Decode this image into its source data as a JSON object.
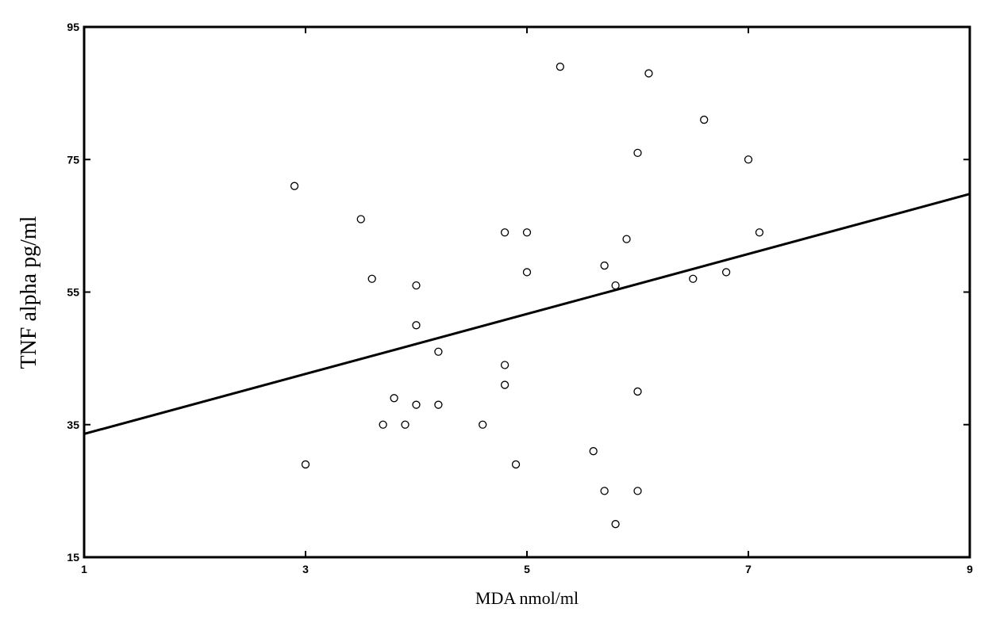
{
  "chart_data": {
    "type": "scatter",
    "title": "",
    "xlabel": "MDA nmol/ml",
    "ylabel": "TNF alpha pg/ml",
    "xlim": [
      1,
      9
    ],
    "ylim": [
      15,
      95
    ],
    "x_ticks": [
      "1",
      "3",
      "5",
      "7",
      "9"
    ],
    "y_ticks": [
      "15",
      "35",
      "55",
      "75",
      "95"
    ],
    "grid": false,
    "legend": "none",
    "points": [
      {
        "x": 2.9,
        "y": 71
      },
      {
        "x": 3.0,
        "y": 29
      },
      {
        "x": 3.5,
        "y": 66
      },
      {
        "x": 3.6,
        "y": 57
      },
      {
        "x": 3.7,
        "y": 35
      },
      {
        "x": 3.8,
        "y": 39
      },
      {
        "x": 3.9,
        "y": 35
      },
      {
        "x": 4.0,
        "y": 56
      },
      {
        "x": 4.0,
        "y": 50
      },
      {
        "x": 4.0,
        "y": 38
      },
      {
        "x": 4.2,
        "y": 46
      },
      {
        "x": 4.2,
        "y": 38
      },
      {
        "x": 4.6,
        "y": 35
      },
      {
        "x": 4.8,
        "y": 64
      },
      {
        "x": 4.8,
        "y": 44
      },
      {
        "x": 4.8,
        "y": 41
      },
      {
        "x": 4.9,
        "y": 29
      },
      {
        "x": 5.0,
        "y": 64
      },
      {
        "x": 5.0,
        "y": 58
      },
      {
        "x": 5.3,
        "y": 89
      },
      {
        "x": 5.6,
        "y": 31
      },
      {
        "x": 5.7,
        "y": 59
      },
      {
        "x": 5.7,
        "y": 25
      },
      {
        "x": 5.8,
        "y": 56
      },
      {
        "x": 5.8,
        "y": 20
      },
      {
        "x": 5.9,
        "y": 63
      },
      {
        "x": 6.0,
        "y": 76
      },
      {
        "x": 6.0,
        "y": 40
      },
      {
        "x": 6.0,
        "y": 25
      },
      {
        "x": 6.1,
        "y": 88
      },
      {
        "x": 6.5,
        "y": 57
      },
      {
        "x": 6.6,
        "y": 81
      },
      {
        "x": 6.8,
        "y": 58
      },
      {
        "x": 7.0,
        "y": 75
      },
      {
        "x": 7.1,
        "y": 64
      }
    ],
    "fit_line": {
      "x": [
        1,
        9
      ],
      "y": [
        33.6,
        69.8
      ]
    },
    "colors": {
      "marker_stroke": "#000000",
      "line": "#000000",
      "frame": "#000000"
    }
  }
}
